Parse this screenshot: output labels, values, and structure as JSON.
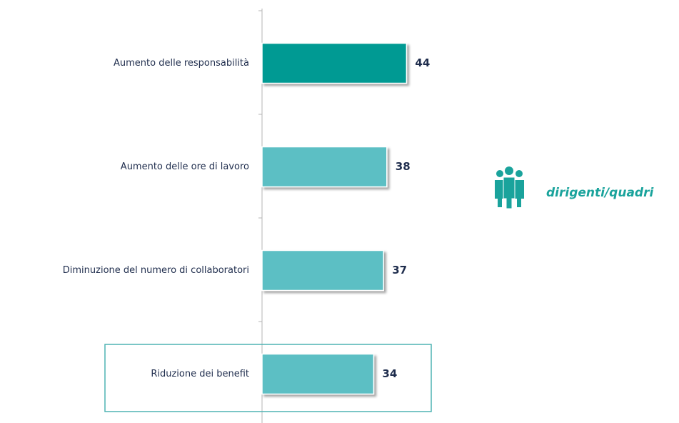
{
  "chart_data": {
    "type": "bar",
    "orientation": "horizontal",
    "categories": [
      "Aumento delle responsabilità",
      "Aumento delle ore di lavoro",
      "Diminuzione del numero di collaboratori",
      "Riduzione dei benefit"
    ],
    "values": [
      44,
      38,
      37,
      34
    ],
    "colors": [
      "#009a93",
      "#5bbfc4",
      "#5bbfc4",
      "#5bbfc4"
    ],
    "legend": "dirigenti/quadri"
  }
}
